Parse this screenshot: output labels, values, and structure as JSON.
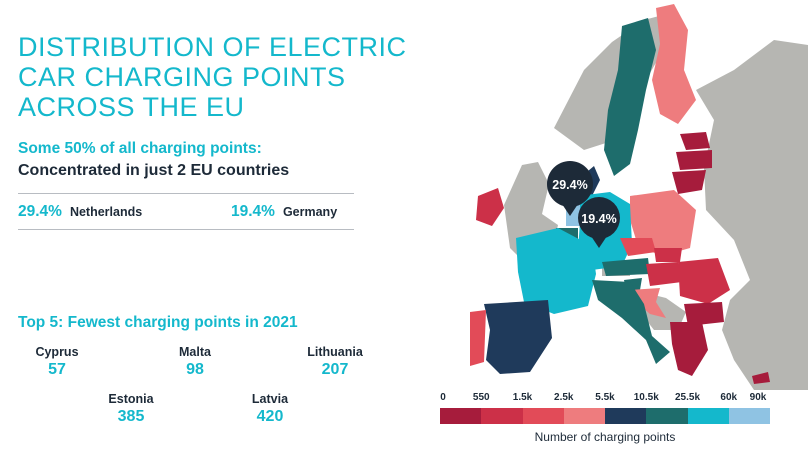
{
  "title": "DISTRIBUTION OF ELECTRIC CAR CHARGING POINTS ACROSS THE EU",
  "subtitle_line1": "Some 50% of all charging points:",
  "subtitle_line2": "Concentrated in just 2 EU countries",
  "shares": [
    {
      "pct": "29.4%",
      "country": "Netherlands"
    },
    {
      "pct": "19.4%",
      "country": "Germany"
    }
  ],
  "fewest_title": "Top 5: Fewest charging points in 2021",
  "fewest": [
    {
      "country": "Cyprus",
      "value": "57"
    },
    {
      "country": "Malta",
      "value": "98"
    },
    {
      "country": "Lithuania",
      "value": "207"
    },
    {
      "country": "Estonia",
      "value": "385"
    },
    {
      "country": "Latvia",
      "value": "420"
    }
  ],
  "map_callouts": [
    {
      "label": "29.4%",
      "country": "Netherlands"
    },
    {
      "label": "19.4%",
      "country": "Germany"
    }
  ],
  "legend": {
    "ticks": [
      "0",
      "550",
      "1.5k",
      "2.5k",
      "5.5k",
      "10.5k",
      "25.5k",
      "60k",
      "90k"
    ],
    "colors": [
      "#a61c3c",
      "#cc3048",
      "#e24b58",
      "#ee7c7e",
      "#1f3a5b",
      "#1e6d6c",
      "#14b8cc",
      "#8fc3e3"
    ],
    "caption": "Number of charging points"
  },
  "colors": {
    "accent": "#14b8cc",
    "text": "#1d2a38",
    "non_eu": "#b6b6b2"
  }
}
